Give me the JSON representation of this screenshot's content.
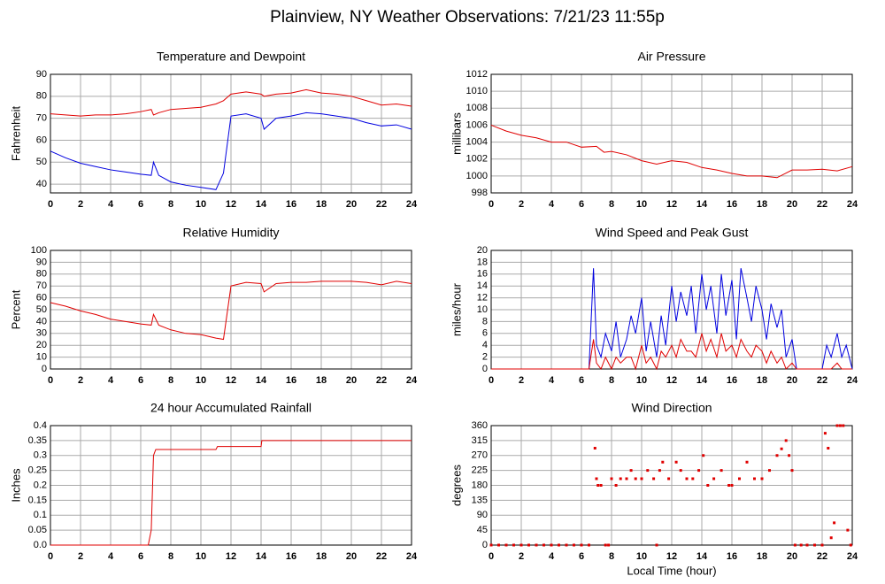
{
  "title": "Plainview, NY Weather Observations: 7/21/23 11:55p",
  "chart_data": [
    {
      "type": "line",
      "title": "Temperature and Dewpoint",
      "ylabel": "Fahrenheit",
      "x": [
        0,
        1,
        2,
        3,
        4,
        5,
        6,
        6.7,
        6.85,
        7.2,
        8,
        9,
        10,
        11,
        11.5,
        12,
        13,
        14,
        14.2,
        15,
        16,
        17,
        18,
        19,
        20,
        21,
        22,
        23,
        24
      ],
      "series": [
        {
          "color": "#e00000",
          "values": [
            72,
            71.5,
            71,
            71.5,
            71.5,
            72,
            73,
            74,
            71.5,
            72.5,
            74,
            74.5,
            75,
            76.5,
            78,
            81,
            82,
            81,
            80,
            81,
            81.5,
            83,
            81.5,
            81,
            80,
            78,
            76,
            76.5,
            75.5
          ]
        },
        {
          "color": "#0000e0",
          "values": [
            55,
            52,
            49.5,
            48,
            46.5,
            45.5,
            44.5,
            44,
            50,
            44,
            41,
            39.5,
            38.5,
            37.5,
            45,
            71,
            72,
            70,
            65,
            70,
            71,
            72.5,
            72,
            71,
            70,
            68,
            66.5,
            67,
            65
          ]
        }
      ],
      "xlim": [
        0,
        24
      ],
      "xticks": [
        0,
        2,
        4,
        6,
        8,
        10,
        12,
        14,
        16,
        18,
        20,
        22,
        24
      ],
      "ylim": [
        36,
        90
      ],
      "yticks": [
        40,
        50,
        60,
        70,
        80,
        90
      ],
      "grid": true
    },
    {
      "type": "line",
      "title": "Air Pressure",
      "ylabel": "millibars",
      "x": [
        0,
        1,
        2,
        3,
        4,
        5,
        6,
        7,
        7.5,
        8,
        9,
        10,
        11,
        12,
        13,
        14,
        15,
        16,
        17,
        18,
        19,
        20,
        21,
        22,
        23,
        24
      ],
      "series": [
        {
          "color": "#e00000",
          "values": [
            1006,
            1005.3,
            1004.8,
            1004.5,
            1004,
            1004,
            1003.4,
            1003.5,
            1002.8,
            1002.9,
            1002.5,
            1001.8,
            1001.4,
            1001.8,
            1001.6,
            1001,
            1000.7,
            1000.3,
            1000,
            1000,
            999.8,
            1000.7,
            1000.7,
            1000.8,
            1000.6,
            1001.1
          ]
        }
      ],
      "xlim": [
        0,
        24
      ],
      "xticks": [
        0,
        2,
        4,
        6,
        8,
        10,
        12,
        14,
        16,
        18,
        20,
        22,
        24
      ],
      "ylim": [
        998,
        1012
      ],
      "yticks": [
        998,
        1000,
        1002,
        1004,
        1006,
        1008,
        1010,
        1012
      ],
      "grid": true
    },
    {
      "type": "line",
      "title": "Relative Humidity",
      "ylabel": "Percent",
      "x": [
        0,
        1,
        2,
        3,
        4,
        5,
        6,
        6.7,
        6.85,
        7.2,
        8,
        9,
        10,
        11,
        11.5,
        12,
        13,
        14,
        14.2,
        15,
        16,
        17,
        18,
        19,
        20,
        21,
        22,
        23,
        24
      ],
      "series": [
        {
          "color": "#e00000",
          "values": [
            56,
            53,
            49,
            46,
            42,
            40,
            38,
            37,
            46,
            37,
            33,
            30,
            29,
            26,
            25,
            70,
            73,
            72,
            65,
            72,
            73,
            73,
            74,
            74,
            74,
            73,
            71,
            74,
            72
          ]
        }
      ],
      "xlim": [
        0,
        24
      ],
      "xticks": [
        0,
        2,
        4,
        6,
        8,
        10,
        12,
        14,
        16,
        18,
        20,
        22,
        24
      ],
      "ylim": [
        0,
        100
      ],
      "yticks": [
        0,
        10,
        20,
        30,
        40,
        50,
        60,
        70,
        80,
        90,
        100
      ],
      "grid": true
    },
    {
      "type": "line",
      "title": "Wind Speed and Peak Gust",
      "ylabel": "miles/hour",
      "x": [
        0,
        6.5,
        6.8,
        7,
        7.3,
        7.6,
        8,
        8.3,
        8.6,
        9,
        9.3,
        9.6,
        10,
        10.3,
        10.6,
        11,
        11.3,
        11.6,
        12,
        12.3,
        12.6,
        13,
        13.3,
        13.6,
        14,
        14.3,
        14.6,
        15,
        15.3,
        15.6,
        16,
        16.3,
        16.6,
        17,
        17.3,
        17.6,
        18,
        18.3,
        18.6,
        19,
        19.3,
        19.6,
        20,
        20.3,
        22,
        22.3,
        22.6,
        23,
        23.3,
        23.6,
        24
      ],
      "series": [
        {
          "color": "#0000e0",
          "values": [
            0,
            0,
            17,
            4,
            2,
            6,
            3,
            8,
            2,
            5,
            9,
            6,
            12,
            3,
            8,
            2,
            9,
            4,
            14,
            8,
            13,
            9,
            14,
            6,
            16,
            10,
            14,
            6,
            16,
            9,
            15,
            5,
            17,
            12,
            8,
            14,
            10,
            5,
            11,
            7,
            10,
            2,
            5,
            0,
            0,
            4,
            2,
            6,
            2,
            4,
            0
          ]
        },
        {
          "color": "#e00000",
          "values": [
            0,
            0,
            5,
            1,
            0,
            2,
            0,
            2,
            1,
            2,
            2,
            0,
            4,
            1,
            2,
            0,
            3,
            2,
            4,
            2,
            5,
            3,
            3,
            2,
            6,
            3,
            5,
            2,
            6,
            3,
            4,
            2,
            5,
            3,
            2,
            4,
            3,
            1,
            3,
            1,
            2,
            0,
            1,
            0,
            0,
            0,
            0,
            1,
            0,
            0,
            0
          ]
        }
      ],
      "xlim": [
        0,
        24
      ],
      "xticks": [
        0,
        2,
        4,
        6,
        8,
        10,
        12,
        14,
        16,
        18,
        20,
        22,
        24
      ],
      "ylim": [
        0,
        20
      ],
      "yticks": [
        0,
        2,
        4,
        6,
        8,
        10,
        12,
        14,
        16,
        18,
        20
      ],
      "grid": true
    },
    {
      "type": "line",
      "title": "24 hour Accumulated Rainfall",
      "ylabel": "Inches",
      "x": [
        0,
        6.5,
        6.7,
        6.85,
        7,
        11,
        11.1,
        14,
        14.05,
        24
      ],
      "series": [
        {
          "color": "#e00000",
          "values": [
            0,
            0,
            0.05,
            0.3,
            0.32,
            0.32,
            0.33,
            0.33,
            0.35,
            0.35
          ]
        }
      ],
      "xlim": [
        0,
        24
      ],
      "xticks": [
        0,
        2,
        4,
        6,
        8,
        10,
        12,
        14,
        16,
        18,
        20,
        22,
        24
      ],
      "ylim": [
        0,
        0.4
      ],
      "yticks": [
        {
          "value": 0,
          "label": "0.0"
        },
        0.05,
        0.1,
        0.15,
        0.2,
        0.25,
        0.3,
        0.35,
        0.4
      ],
      "grid": true
    },
    {
      "type": "scatter",
      "title": "Wind Direction",
      "ylabel": "degrees",
      "xlabel": "Local Time (hour)",
      "color": "#e00000",
      "x": [
        0,
        0.5,
        1,
        1.5,
        2,
        2.5,
        3,
        3.5,
        4,
        4.5,
        5,
        5.5,
        6,
        6.5,
        6.9,
        7,
        7.1,
        7.3,
        7.6,
        7.8,
        8,
        8.3,
        8.6,
        9,
        9.3,
        9.6,
        10,
        10.4,
        10.8,
        11,
        11.2,
        11.4,
        11.8,
        12.3,
        12.6,
        13,
        13.4,
        13.8,
        14.1,
        14.4,
        14.8,
        15.3,
        15.8,
        16,
        16.5,
        17,
        17.5,
        18,
        18.5,
        19,
        19.3,
        19.6,
        19.8,
        20,
        20.2,
        20.6,
        21,
        21.5,
        22,
        22.2,
        22.4,
        22.6,
        22.8,
        23,
        23.2,
        23.4,
        23.7,
        23.9
      ],
      "values": [
        0,
        0,
        0,
        0,
        0,
        0,
        0,
        0,
        0,
        0,
        0,
        0,
        0,
        0,
        292,
        200,
        180,
        180,
        0,
        0,
        200,
        180,
        200,
        200,
        225,
        200,
        200,
        225,
        200,
        0,
        225,
        250,
        200,
        250,
        225,
        200,
        200,
        225,
        270,
        180,
        200,
        225,
        180,
        180,
        200,
        250,
        200,
        200,
        225,
        270,
        290,
        315,
        270,
        225,
        0,
        0,
        0,
        0,
        0,
        337,
        292,
        22,
        67,
        360,
        360,
        360,
        45,
        0
      ],
      "xlim": [
        0,
        24
      ],
      "xticks": [
        0,
        2,
        4,
        6,
        8,
        10,
        12,
        14,
        16,
        18,
        20,
        22,
        24
      ],
      "ylim": [
        0,
        360
      ],
      "yticks": [
        0,
        45,
        90,
        135,
        180,
        225,
        270,
        315,
        360
      ],
      "grid": true
    }
  ]
}
